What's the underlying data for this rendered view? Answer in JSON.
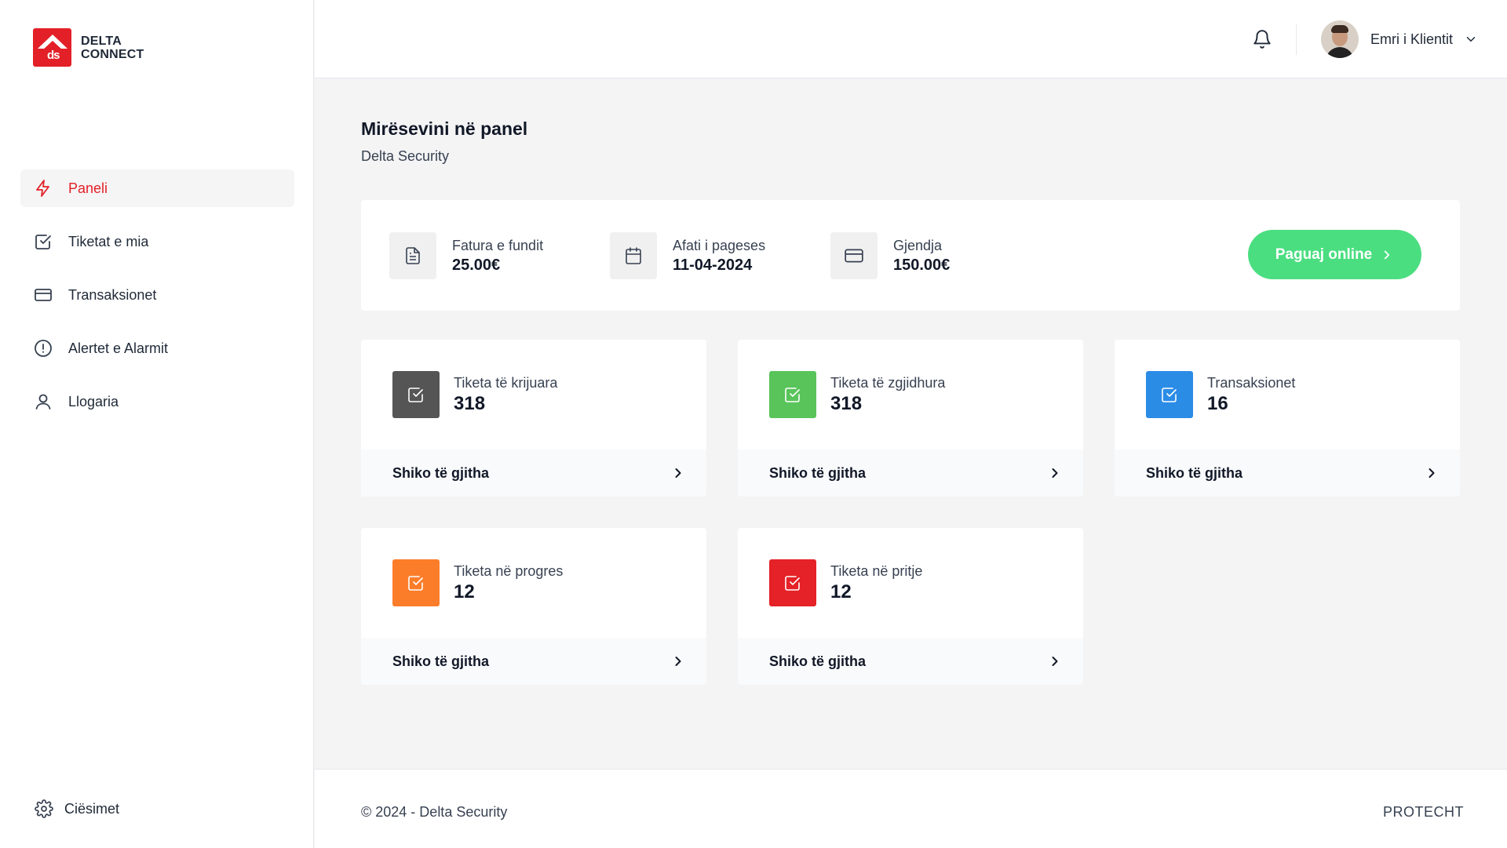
{
  "brand": {
    "line1": "DELTA",
    "line2": "CONNECT",
    "mark": "ds"
  },
  "sidebar": {
    "items": [
      {
        "label": "Paneli",
        "icon": "bolt-icon",
        "active": true
      },
      {
        "label": "Tiketat e mia",
        "icon": "checkbox-icon"
      },
      {
        "label": "Transaksionet",
        "icon": "credit-card-icon"
      },
      {
        "label": "Alertet e Alarmit",
        "icon": "alert-circle-icon"
      },
      {
        "label": "Llogaria",
        "icon": "user-icon"
      }
    ],
    "settings_label": "Ciësimet"
  },
  "header": {
    "user_name": "Emri i Klientit"
  },
  "page": {
    "title": "Mirësevini në panel",
    "subtitle": "Delta Security"
  },
  "summary": {
    "items": [
      {
        "label": "Fatura e fundit",
        "value": "25.00€",
        "icon": "document-icon"
      },
      {
        "label": "Afati i pageses",
        "value": "11-04-2024",
        "icon": "calendar-icon"
      },
      {
        "label": "Gjendja",
        "value": "150.00€",
        "icon": "credit-card-icon"
      }
    ],
    "pay_label": "Paguaj online"
  },
  "cards": [
    {
      "label": "Tiketa të krijuara",
      "value": "318",
      "color": "#555555",
      "link": "Shiko të gjitha"
    },
    {
      "label": "Tiketa të zgjidhura",
      "value": "318",
      "color": "#58c45a",
      "link": "Shiko të gjitha"
    },
    {
      "label": "Transaksionet",
      "value": "16",
      "color": "#2b8ce6",
      "link": "Shiko të gjitha"
    },
    {
      "label": "Tiketa në progres",
      "value": "12",
      "color": "#fb7d2a",
      "link": "Shiko të gjitha"
    },
    {
      "label": "Tiketa në pritje",
      "value": "12",
      "color": "#e52227",
      "link": "Shiko të gjitha"
    }
  ],
  "footer": {
    "copyright": "© 2024 - Delta Security",
    "credit": "PROTECHT"
  },
  "colors": {
    "accent": "#e32027",
    "pay_button": "#4ade80"
  }
}
